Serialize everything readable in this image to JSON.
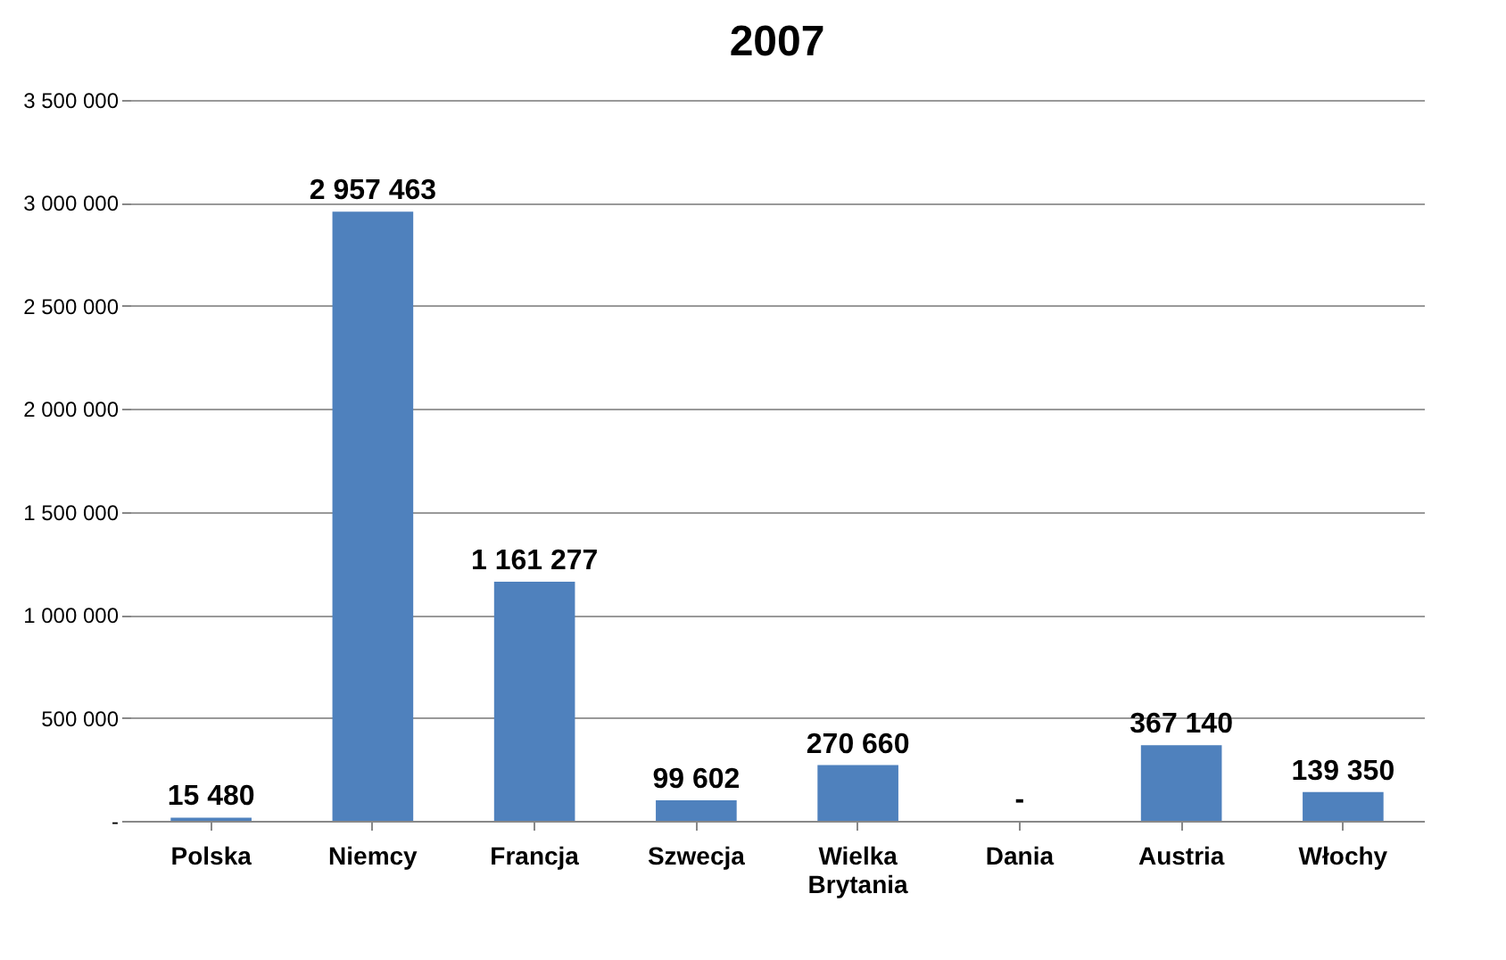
{
  "chart_data": {
    "type": "bar",
    "title": "2007",
    "categories": [
      "Polska",
      "Niemcy",
      "Francja",
      "Szwecja",
      "Wielka Brytania",
      "Dania",
      "Austria",
      "Włochy"
    ],
    "values": [
      15480,
      2957463,
      1161277,
      99602,
      270660,
      0,
      367140,
      139350
    ],
    "value_labels": [
      "15 480",
      "2 957 463",
      "1 161 277",
      "99 602",
      "270 660",
      "-",
      "367 140",
      "139 350"
    ],
    "color": "#4f81bd",
    "ylim": [
      0,
      3500000
    ],
    "yticks": [
      {
        "value": 0,
        "label": "-"
      },
      {
        "value": 500000,
        "label": "500 000"
      },
      {
        "value": 1000000,
        "label": "1 000 000"
      },
      {
        "value": 1500000,
        "label": "1 500 000"
      },
      {
        "value": 2000000,
        "label": "2 000 000"
      },
      {
        "value": 2500000,
        "label": "2 500 000"
      },
      {
        "value": 3000000,
        "label": "3 000 000"
      },
      {
        "value": 3500000,
        "label": "3 500 000"
      }
    ],
    "grid": "y"
  }
}
